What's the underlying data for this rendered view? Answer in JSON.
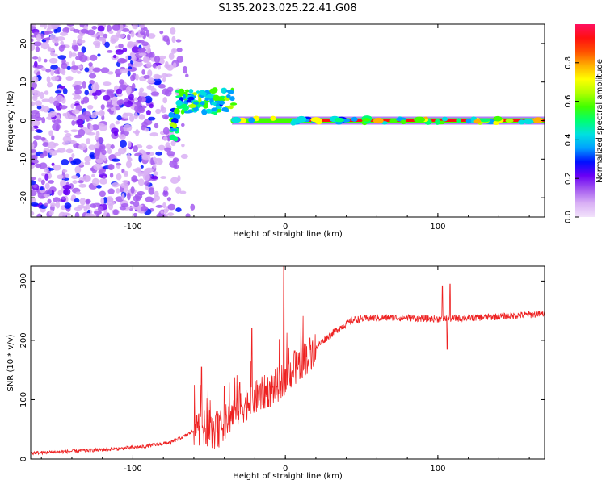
{
  "title": "S135.2023.025.22.41.G08",
  "chart_data": [
    {
      "type": "heatmap",
      "name": "spectrogram",
      "xlabel": "Height of straight line (km)",
      "ylabel": "Frequency (Hz)",
      "xlim": [
        -167,
        170
      ],
      "ylim": [
        -25,
        25
      ],
      "xticks": [
        -100,
        0,
        100
      ],
      "yticks": [
        -20,
        -10,
        0,
        10,
        20
      ],
      "grid": false,
      "description_values": {
        "noise_region_km": [
          -167,
          -60
        ],
        "signal_line_start_km": -35,
        "signal_line_end_km": 170,
        "signal_frequency_hz": 0
      },
      "colorbar": {
        "label": "Normalized spectral amplitude",
        "range": [
          0.0,
          1.0
        ],
        "ticks": [
          0.0,
          0.2,
          0.4,
          0.6,
          0.8
        ],
        "tick_labels": [
          "0.0",
          "0.2",
          "0.4",
          "0.6",
          "0.8"
        ],
        "colors": [
          "#f2e3fb",
          "#d9b0f5",
          "#a55bf0",
          "#6a00f5",
          "#0010ff",
          "#00a0ff",
          "#00e0e0",
          "#00ff70",
          "#40ff00",
          "#b0ff00",
          "#ffff00",
          "#ffb000",
          "#ff5000",
          "#ff1010",
          "#ff1060"
        ]
      }
    },
    {
      "type": "line",
      "name": "snr",
      "xlabel": "Height of straight line (km)",
      "ylabel": "SNR (10 * v/v)",
      "xlim": [
        -167,
        170
      ],
      "ylim": [
        0,
        325
      ],
      "xticks": [
        -100,
        0,
        100
      ],
      "yticks": [
        0,
        100,
        200,
        300
      ],
      "grid": false,
      "color": "#ee2222",
      "trend": {
        "x": [
          -167,
          -140,
          -110,
          -90,
          -75,
          -65,
          -55,
          -45,
          -35,
          -25,
          -15,
          -5,
          5,
          15,
          25,
          35,
          45,
          60,
          80,
          100,
          120,
          140,
          170
        ],
        "y": [
          10,
          13,
          17,
          22,
          28,
          40,
          55,
          45,
          75,
          95,
          110,
          125,
          150,
          175,
          200,
          220,
          235,
          238,
          238,
          236,
          238,
          240,
          245
        ]
      },
      "spikes": [
        {
          "x": -55,
          "y": 155
        },
        {
          "x": -40,
          "y": 122
        },
        {
          "x": -30,
          "y": 130
        },
        {
          "x": -22,
          "y": 220
        },
        {
          "x": -1,
          "y": 325
        },
        {
          "x": 103,
          "y": 292
        },
        {
          "x": 108,
          "y": 295
        },
        {
          "x": 106,
          "y": 185
        }
      ]
    }
  ]
}
